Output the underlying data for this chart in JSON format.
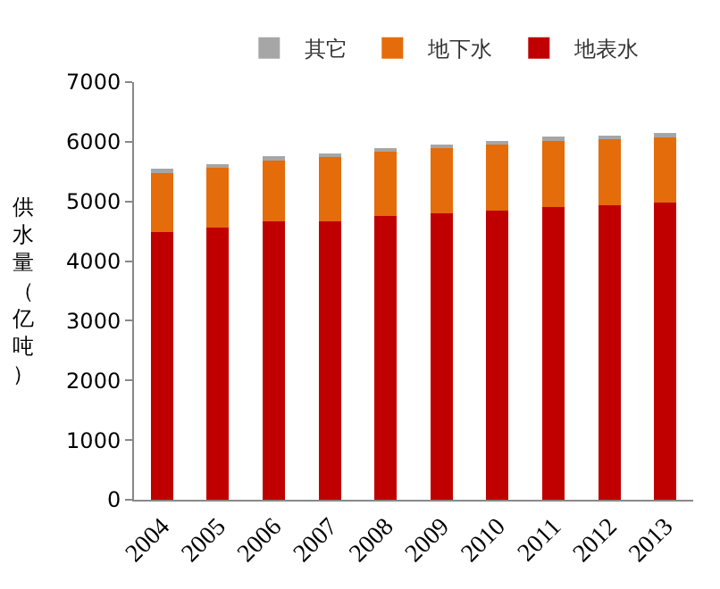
{
  "chart_data": {
    "type": "bar",
    "stacked": true,
    "ylabel": "供水量（亿吨）",
    "categories": [
      "2004",
      "2005",
      "2006",
      "2007",
      "2008",
      "2009",
      "2010",
      "2011",
      "2012",
      "2013"
    ],
    "series": [
      {
        "name": "地表水",
        "color": "#c00000",
        "values": [
          4490,
          4560,
          4670,
          4660,
          4750,
          4800,
          4840,
          4910,
          4940,
          4980
        ]
      },
      {
        "name": "地下水",
        "color": "#e46c0a",
        "values": [
          1010,
          1010,
          1040,
          1090,
          1100,
          1100,
          1130,
          1130,
          1120,
          1120
        ]
      },
      {
        "name": "其它",
        "color": "#a6a6a6",
        "values": [
          50,
          50,
          50,
          50,
          50,
          50,
          50,
          50,
          50,
          50
        ]
      }
    ],
    "ylim": [
      0,
      7000
    ],
    "yticks": [
      0,
      1000,
      2000,
      3000,
      4000,
      5000,
      6000,
      7000
    ],
    "legend": "top"
  }
}
